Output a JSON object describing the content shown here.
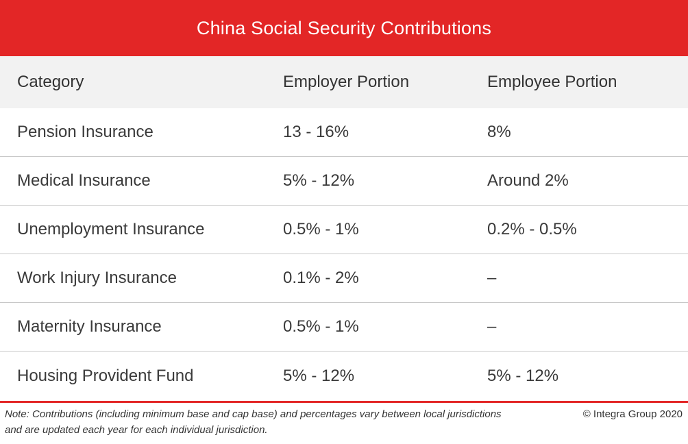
{
  "title": "China Social Security Contributions",
  "table": {
    "headers": [
      "Category",
      "Employer Portion",
      "Employee Portion"
    ],
    "rows": [
      {
        "category": "Pension Insurance",
        "employer": "13 - 16%",
        "employee": "8%"
      },
      {
        "category": "Medical Insurance",
        "employer": "5% - 12%",
        "employee": "Around 2%"
      },
      {
        "category": "Unemployment Insurance",
        "employer": "0.5% - 1%",
        "employee": "0.2% - 0.5%"
      },
      {
        "category": "Work Injury Insurance",
        "employer": "0.1% - 2%",
        "employee": "–"
      },
      {
        "category": "Maternity Insurance",
        "employer": "0.5% - 1%",
        "employee": "–"
      },
      {
        "category": "Housing Provident Fund",
        "employer": "5% - 12%",
        "employee": "5% - 12%"
      }
    ]
  },
  "footer": {
    "note": "Note: Contributions  (including minimum base and cap base) and percentages vary between local jurisdictions and are updated each year for each individual jurisdiction.",
    "copyright": "© Integra Group 2020"
  },
  "colors": {
    "accent": "#e32626",
    "header_bg": "#f2f2f2"
  }
}
